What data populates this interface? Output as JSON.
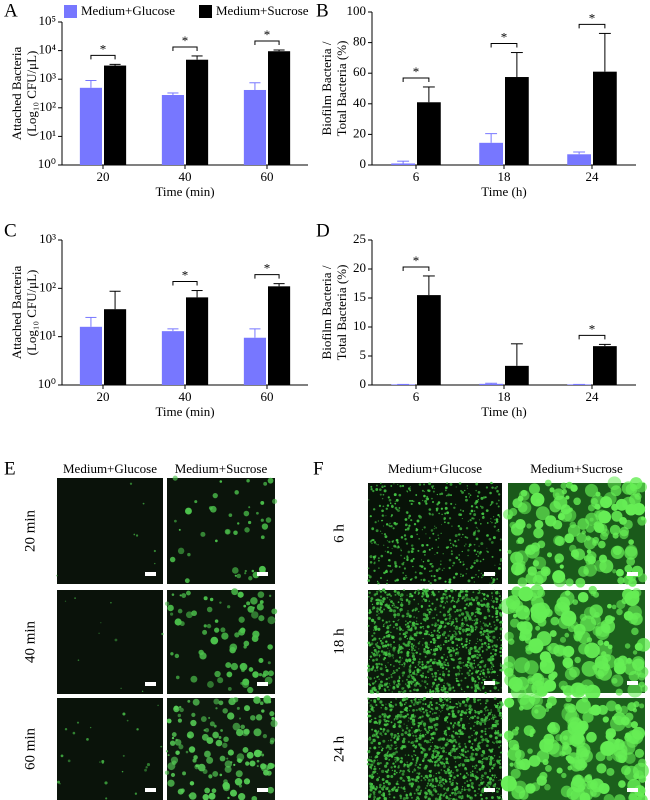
{
  "chart_data": [
    {
      "panel": "A",
      "type": "bar",
      "ylabel": [
        "Attached Bacteria",
        "(Log₁₀ CFU/μL)"
      ],
      "xlabel": "Time (min)",
      "categories": [
        "20",
        "40",
        "60"
      ],
      "log_scale": true,
      "legend": "top",
      "series": [
        {
          "name": "Medium+Glucose",
          "color": "#7777ff",
          "values": [
            500,
            280,
            420
          ],
          "errors": [
            400,
            50,
            330
          ]
        },
        {
          "name": "Medium+Sucrose",
          "color": "#000000",
          "values": [
            3000,
            4800,
            9500
          ],
          "errors": [
            300,
            1700,
            1000
          ]
        }
      ],
      "significance": [
        "*",
        "*",
        "*"
      ],
      "ylim": [
        1,
        100000
      ],
      "yticks": [
        {
          "value": 1,
          "label": "10⁰"
        },
        {
          "value": 10,
          "label": "10¹"
        },
        {
          "value": 100,
          "label": "10²"
        },
        {
          "value": 1000,
          "label": "10³"
        },
        {
          "value": 10000,
          "label": "10⁴"
        },
        {
          "value": 100000,
          "label": "10⁵"
        }
      ]
    },
    {
      "panel": "B",
      "type": "bar",
      "ylabel": [
        "Biofilm Bacteria /",
        "Total Bacteria (%)"
      ],
      "xlabel": "Time (h)",
      "categories": [
        "6",
        "18",
        "24"
      ],
      "log_scale": false,
      "series": [
        {
          "color": "#7777ff",
          "values": [
            1,
            14.5,
            7
          ],
          "errors": [
            1.5,
            6,
            1.5
          ]
        },
        {
          "color": "#000000",
          "values": [
            41,
            57.5,
            61
          ],
          "errors": [
            10,
            16,
            25
          ]
        }
      ],
      "significance": [
        "*",
        "*",
        "*"
      ],
      "ylim": [
        0,
        100
      ],
      "yticks": [
        0,
        20,
        40,
        60,
        80,
        100
      ]
    },
    {
      "panel": "C",
      "type": "bar",
      "ylabel": [
        "Attached Bacteria",
        "(Log₁₀ CFU/μL)"
      ],
      "xlabel": "Time (min)",
      "categories": [
        "20",
        "40",
        "60"
      ],
      "log_scale": true,
      "series": [
        {
          "color": "#7777ff",
          "values": [
            16,
            13,
            9.5
          ],
          "errors": [
            9,
            1.5,
            5
          ]
        },
        {
          "color": "#000000",
          "values": [
            37,
            65,
            110
          ],
          "errors": [
            50,
            25,
            15
          ]
        }
      ],
      "significance": [
        null,
        "*",
        "*"
      ],
      "ylim": [
        1,
        1000
      ],
      "yticks": [
        {
          "value": 1,
          "label": "10⁰"
        },
        {
          "value": 10,
          "label": "10¹"
        },
        {
          "value": 100,
          "label": "10²"
        },
        {
          "value": 1000,
          "label": "10³"
        }
      ]
    },
    {
      "panel": "D",
      "type": "bar",
      "ylabel": [
        "Biofilm Bacteria /",
        "Total Bacteria (%)"
      ],
      "xlabel": "Time (h)",
      "categories": [
        "6",
        "18",
        "24"
      ],
      "log_scale": false,
      "series": [
        {
          "color": "#7777ff",
          "values": [
            0.1,
            0.2,
            0.1
          ],
          "errors": [
            0,
            0.1,
            0
          ]
        },
        {
          "color": "#000000",
          "values": [
            15.5,
            3.3,
            6.7
          ],
          "errors": [
            3.3,
            3.8,
            0.3
          ]
        }
      ],
      "significance": [
        "*",
        null,
        "*"
      ],
      "ylim": [
        0,
        25
      ],
      "yticks": [
        0,
        5,
        10,
        15,
        20,
        25
      ]
    }
  ],
  "panel_e": {
    "panel": "E",
    "columns": [
      "Medium+Glucose",
      "Medium+Sucrose"
    ],
    "rows": [
      "20 min",
      "40 min",
      "60 min"
    ]
  },
  "panel_f": {
    "panel": "F",
    "columns": [
      "Medium+Glucose",
      "Medium+Sucrose"
    ],
    "rows": [
      "6 h",
      "18 h",
      "24 h"
    ]
  }
}
